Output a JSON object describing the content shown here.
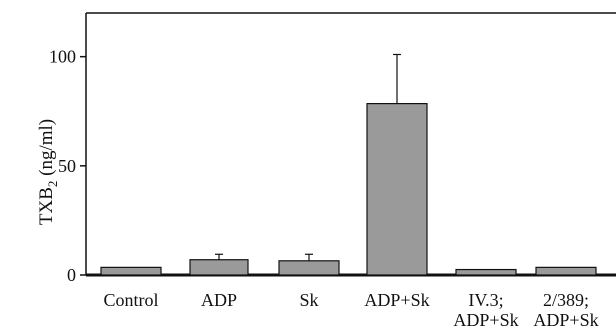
{
  "chart_data": {
    "type": "bar",
    "categories": [
      [
        "Control"
      ],
      [
        "ADP"
      ],
      [
        "Sk"
      ],
      [
        "ADP+Sk"
      ],
      [
        "IV.3;",
        "ADP+Sk"
      ],
      [
        "2/389;",
        "ADP+Sk"
      ]
    ],
    "values": [
      3.5,
      7,
      6.5,
      78.5,
      2.5,
      3.5
    ],
    "errors": [
      0,
      2.5,
      3,
      22.5,
      0,
      0
    ],
    "ylabel": "TXB",
    "ylabel_subscript": "2",
    "ylabel_unit": " (ng/ml)",
    "ylim": [
      0,
      120
    ],
    "yticks": [
      0,
      50,
      100
    ],
    "bar_color": "#9a9a9a",
    "grid": false
  }
}
